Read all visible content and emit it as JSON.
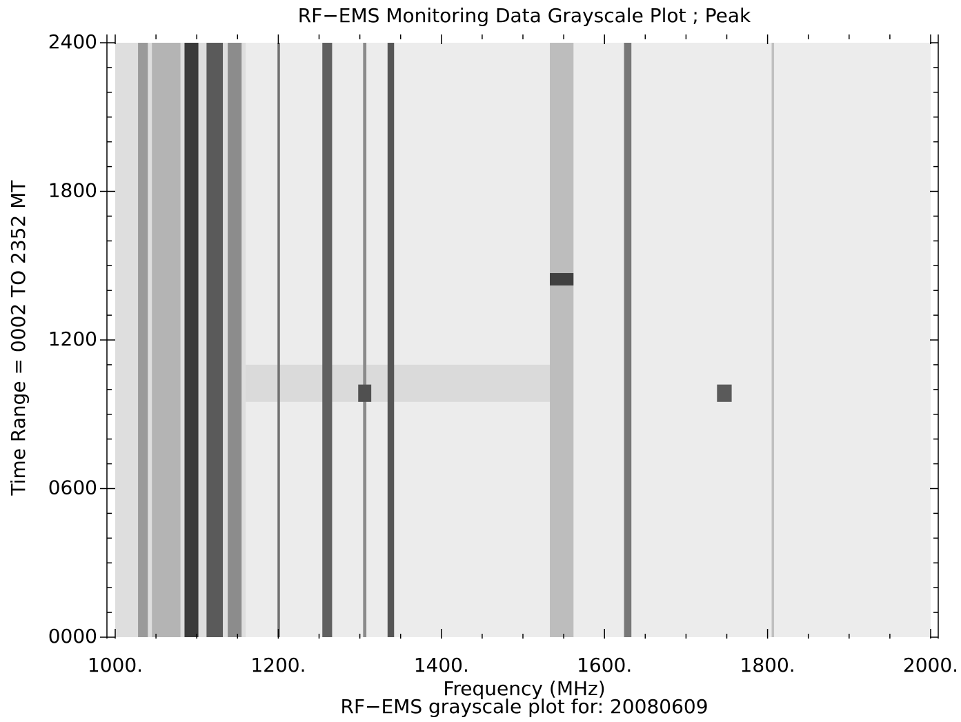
{
  "chart_data": {
    "type": "heatmap",
    "title": "RF−EMS Monitoring Data Grayscale Plot ;  Peak",
    "x_label": "Frequency (MHz)",
    "y_label": "Time Range = 0002  TO  2352 MT",
    "caption": "RF−EMS grayscale plot for: 20080609",
    "background": "#ececec",
    "xlim": [
      1000,
      2000
    ],
    "ylim": [
      0,
      2400
    ],
    "xticks": [
      {
        "value": 1000,
        "label": "1000."
      },
      {
        "value": 1200,
        "label": "1200."
      },
      {
        "value": 1400,
        "label": "1400."
      },
      {
        "value": 1600,
        "label": "1600."
      },
      {
        "value": 1800,
        "label": "1800."
      },
      {
        "value": 2000,
        "label": "2000."
      }
    ],
    "yticks": [
      {
        "value": 0,
        "label": "0000"
      },
      {
        "value": 600,
        "label": "0600"
      },
      {
        "value": 1200,
        "label": "1200"
      },
      {
        "value": 1800,
        "label": "1800"
      },
      {
        "value": 2400,
        "label": "2400"
      }
    ],
    "xminorticks": [
      1050,
      1100,
      1150,
      1250,
      1300,
      1350,
      1450,
      1500,
      1550,
      1650,
      1700,
      1750,
      1850,
      1900,
      1950
    ],
    "yminorticks": [
      100,
      200,
      300,
      400,
      500,
      700,
      800,
      900,
      1000,
      1100,
      1300,
      1400,
      1500,
      1600,
      1700,
      1900,
      2000,
      2100,
      2200,
      2300
    ],
    "stripes": [
      {
        "freq": [
          1000,
          1160
        ],
        "time": [
          0,
          2400
        ],
        "shade": "#dedede"
      },
      {
        "freq": [
          1160,
          1560
        ],
        "time": [
          950,
          1100
        ],
        "shade": "#dadada"
      },
      {
        "freq": [
          1028,
          1040
        ],
        "time": [
          0,
          2400
        ],
        "shade": "#9a9a9a"
      },
      {
        "freq": [
          1045,
          1080
        ],
        "time": [
          0,
          2400
        ],
        "shade": "#b4b4b4"
      },
      {
        "freq": [
          1085,
          1102
        ],
        "time": [
          0,
          2400
        ],
        "shade": "#3a3a3a"
      },
      {
        "freq": [
          1112,
          1132
        ],
        "time": [
          0,
          2400
        ],
        "shade": "#5a5a5a"
      },
      {
        "freq": [
          1138,
          1155
        ],
        "time": [
          0,
          2400
        ],
        "shade": "#8c8c8c"
      },
      {
        "freq": [
          1199,
          1202
        ],
        "time": [
          0,
          2400
        ],
        "shade": "#707070"
      },
      {
        "freq": [
          1254,
          1266
        ],
        "time": [
          0,
          2400
        ],
        "shade": "#606060"
      },
      {
        "freq": [
          1304,
          1308
        ],
        "time": [
          0,
          2400
        ],
        "shade": "#8a8a8a"
      },
      {
        "freq": [
          1334,
          1342
        ],
        "time": [
          0,
          2400
        ],
        "shade": "#555555"
      },
      {
        "freq": [
          1533,
          1562
        ],
        "time": [
          0,
          2400
        ],
        "shade": "#bdbdbd"
      },
      {
        "freq": [
          1624,
          1633
        ],
        "time": [
          0,
          2400
        ],
        "shade": "#777777"
      },
      {
        "freq": [
          1805,
          1808
        ],
        "time": [
          0,
          2400
        ],
        "shade": "#c0c0c0"
      },
      {
        "freq": [
          1298,
          1314
        ],
        "time": [
          950,
          1020
        ],
        "shade": "#505050"
      },
      {
        "freq": [
          1738,
          1756
        ],
        "time": [
          950,
          1020
        ],
        "shade": "#5a5a5a"
      },
      {
        "freq": [
          1533,
          1562
        ],
        "time": [
          1420,
          1470
        ],
        "shade": "#404040"
      }
    ]
  }
}
